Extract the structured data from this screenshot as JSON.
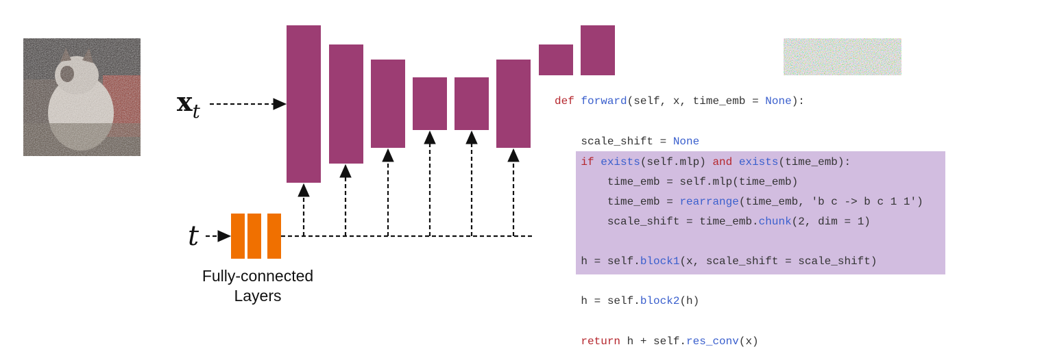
{
  "diagram": {
    "input_label": {
      "main": "x",
      "sub": "t"
    },
    "time_label": "t",
    "fc_label": [
      "Fully-connected",
      "Layers"
    ],
    "code_lines": [
      [
        {
          "text": "def",
          "color": "#b5262d"
        },
        {
          "text": " ",
          "color": "#333333"
        },
        {
          "text": "forward",
          "color": "#3a5fcd"
        },
        {
          "text": "(self, x, time_emb = ",
          "color": "#333333"
        },
        {
          "text": "None",
          "color": "#3a5fcd"
        },
        {
          "text": "):",
          "color": "#333333"
        }
      ],
      [
        {
          "text": "    scale_shift = ",
          "color": "#333333"
        },
        {
          "text": "None",
          "color": "#3a5fcd"
        }
      ],
      [
        {
          "text": "    ",
          "color": "#333333"
        },
        {
          "text": "if",
          "color": "#b5262d"
        },
        {
          "text": " ",
          "color": "#333333"
        },
        {
          "text": "exists",
          "color": "#3a5fcd"
        },
        {
          "text": "(self.mlp) ",
          "color": "#333333"
        },
        {
          "text": "and",
          "color": "#b5262d"
        },
        {
          "text": " ",
          "color": "#333333"
        },
        {
          "text": "exists",
          "color": "#3a5fcd"
        },
        {
          "text": "(time_emb):",
          "color": "#333333"
        }
      ],
      [
        {
          "text": "        time_emb = self.mlp(time_emb)",
          "color": "#333333"
        }
      ],
      [
        {
          "text": "        time_emb = ",
          "color": "#333333"
        },
        {
          "text": "rearrange",
          "color": "#3a5fcd"
        },
        {
          "text": "(time_emb, 'b c -> b c 1 1')",
          "color": "#333333"
        }
      ],
      [
        {
          "text": "        scale_shift = time_emb.",
          "color": "#333333"
        },
        {
          "text": "chunk",
          "color": "#3a5fcd"
        },
        {
          "text": "(2, dim = 1)",
          "color": "#333333"
        }
      ],
      [
        {
          "text": "    h = self.",
          "color": "#333333"
        },
        {
          "text": "block1",
          "color": "#3a5fcd"
        },
        {
          "text": "(x, scale_shift = scale_shift)",
          "color": "#333333"
        }
      ],
      [
        {
          "text": "    h = self.",
          "color": "#333333"
        },
        {
          "text": "block2",
          "color": "#3a5fcd"
        },
        {
          "text": "(h)",
          "color": "#333333"
        }
      ],
      [
        {
          "text": "    ",
          "color": "#333333"
        },
        {
          "text": "return",
          "color": "#b5262d"
        },
        {
          "text": " h + self.",
          "color": "#333333"
        },
        {
          "text": "res_conv",
          "color": "#3a5fcd"
        },
        {
          "text": "(x)",
          "color": "#333333"
        }
      ]
    ]
  }
}
